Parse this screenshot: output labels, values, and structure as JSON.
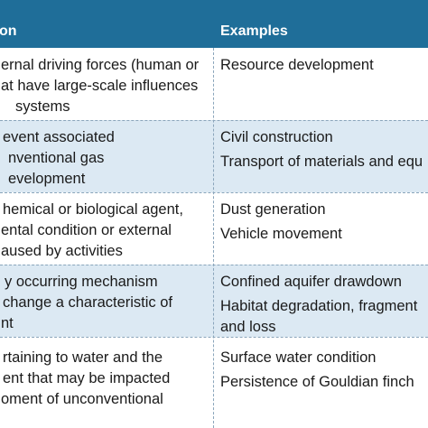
{
  "header": {
    "col1": "on",
    "col2": "Examples"
  },
  "rows": [
    {
      "col1": [
        "ernal driving forces (human or",
        "at have large-scale influences",
        "systems"
      ],
      "col2": [
        "Resource development"
      ]
    },
    {
      "col1": [
        "event associated",
        "nventional gas",
        "evelopment"
      ],
      "col2": [
        "Civil construction",
        "Transport of materials and equ"
      ]
    },
    {
      "col1": [
        "hemical or biological agent,",
        "ental condition or external",
        "aused by activities"
      ],
      "col2": [
        "Dust generation",
        "Vehicle movement"
      ]
    },
    {
      "col1": [
        "y occurring mechanism",
        "change a characteristic of",
        "nt"
      ],
      "col2": [
        "Confined aquifer drawdown",
        "Habitat degradation, fragment",
        "and loss"
      ]
    },
    {
      "col1": [
        "rtaining to water and the",
        "ent that may be impacted",
        "oment of unconventional",
        ""
      ],
      "col2": [
        "Surface water condition",
        "Persistence of Gouldian finch"
      ]
    }
  ],
  "colors": {
    "header_bg": "#1f6e99",
    "alt_row_bg": "#dce9f3"
  }
}
